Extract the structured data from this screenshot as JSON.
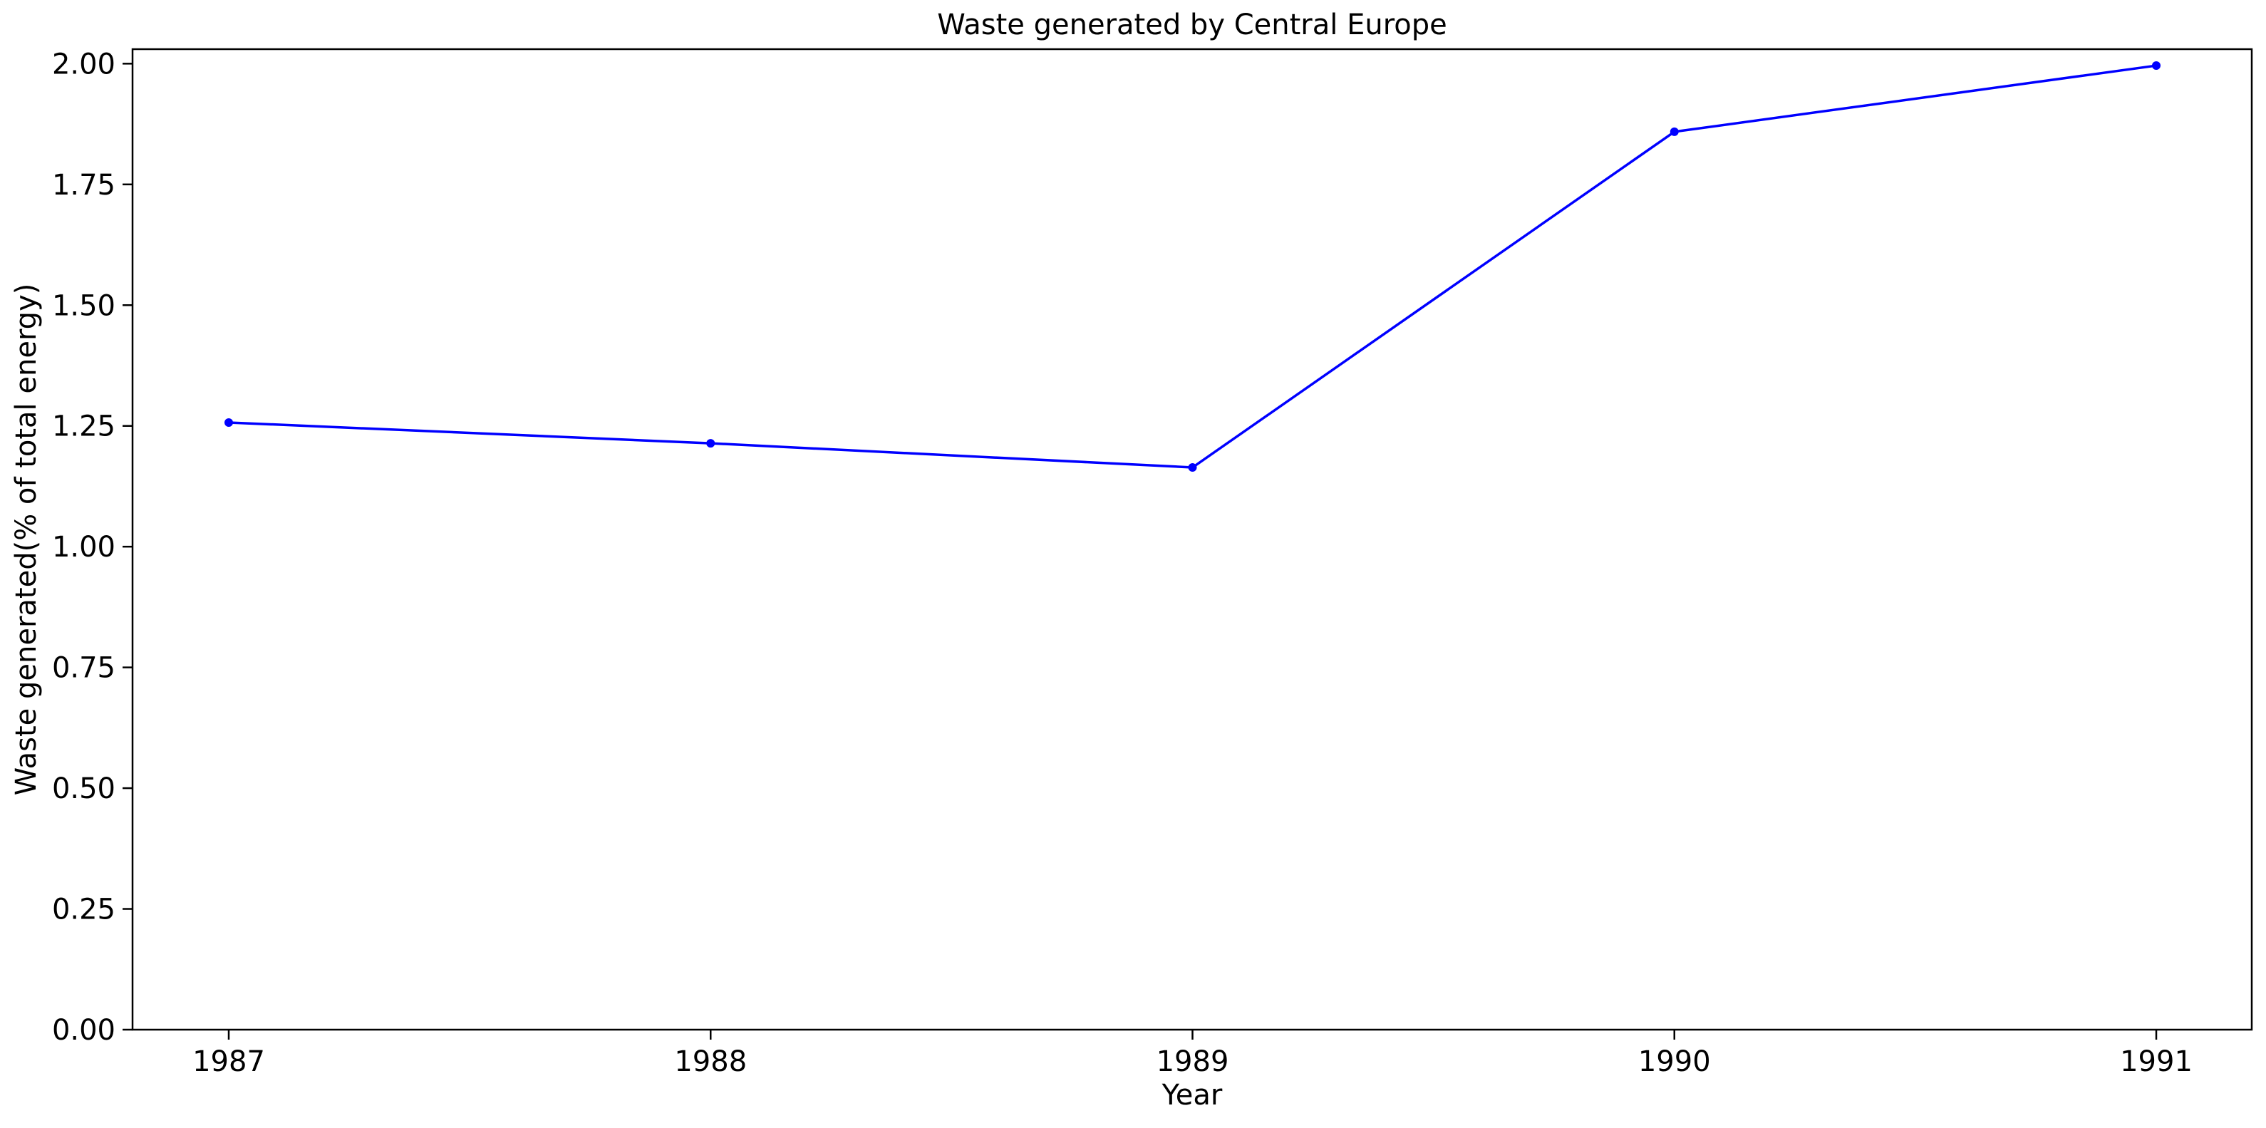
{
  "chart_data": {
    "type": "line",
    "title": "Waste generated by Central Europe",
    "xlabel": "Year",
    "ylabel": "Waste generated(% of total energy)",
    "x": [
      "1987",
      "1988",
      "1989",
      "1990",
      "1991"
    ],
    "series": [
      {
        "values": [
          1.257,
          1.214,
          1.164,
          1.859,
          1.996
        ],
        "color": "#0000ff",
        "marker": "circle"
      }
    ],
    "ylim": [
      0,
      2.03
    ],
    "yticks": [
      "0.00",
      "0.25",
      "0.50",
      "0.75",
      "1.00",
      "1.25",
      "1.50",
      "1.75",
      "2.00"
    ],
    "grid": false,
    "legend": "none"
  }
}
